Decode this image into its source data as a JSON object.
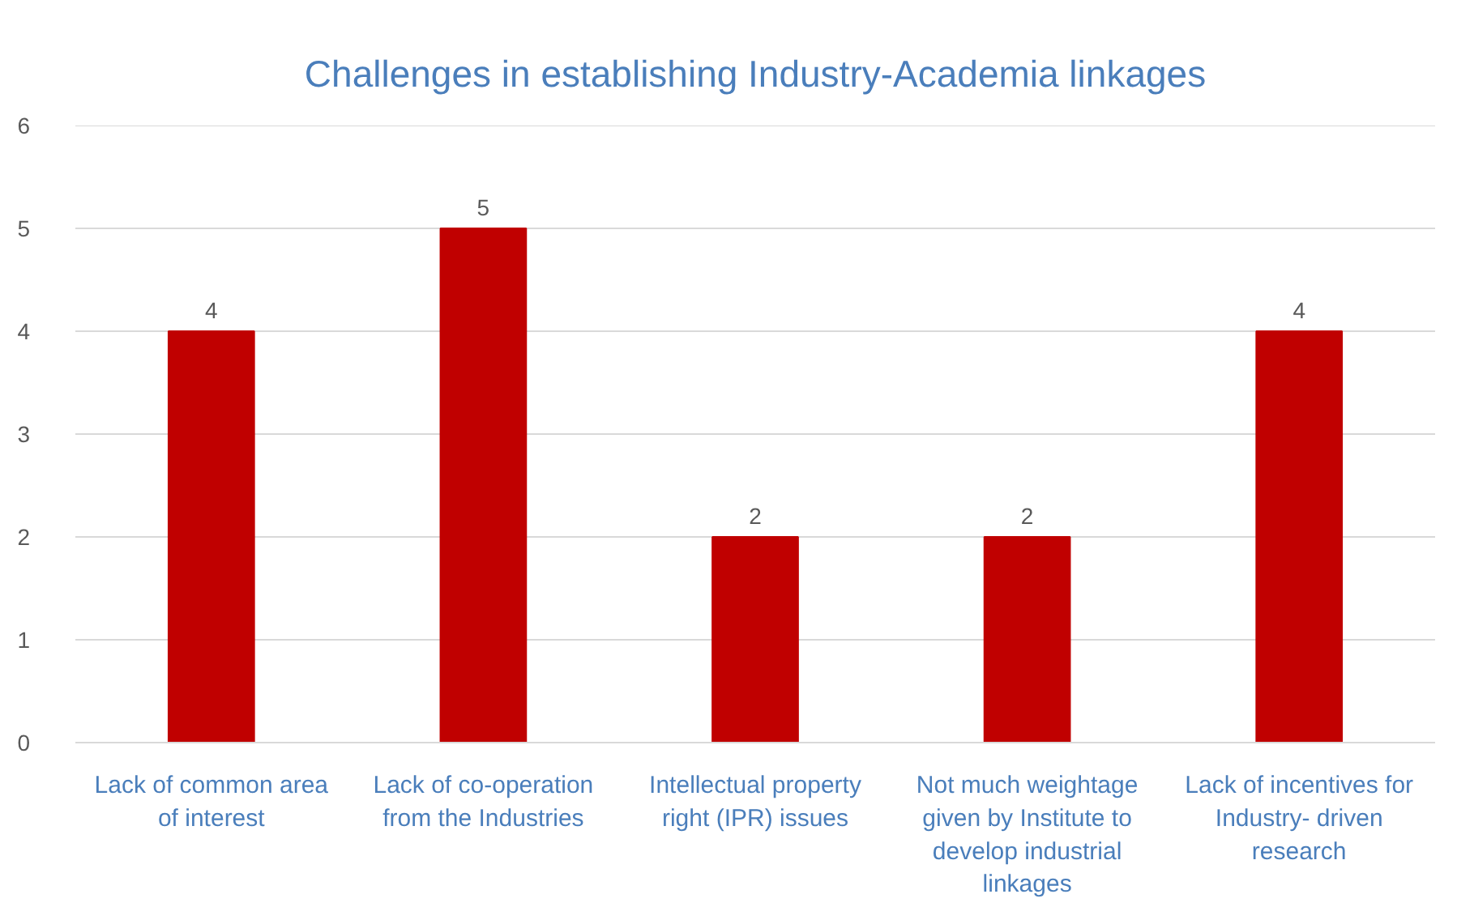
{
  "chart_data": {
    "type": "bar",
    "title": "Challenges in establishing Industry-Academia linkages",
    "categories": [
      "Lack of common area\nof interest",
      "Lack of co-operation\nfrom the Industries",
      "Intellectual property\nright (IPR) issues",
      "Not much weightage\ngiven by Institute to\ndevelop industrial\nlinkages",
      "Lack of incentives for\nIndustry- driven\nresearch"
    ],
    "values": [
      4,
      5,
      2,
      2,
      4
    ],
    "color": "#c00000",
    "ylim": [
      0,
      6
    ],
    "yticks": [
      0,
      1,
      2,
      3,
      4,
      5,
      6
    ],
    "grid": "y",
    "data_labels": true
  }
}
